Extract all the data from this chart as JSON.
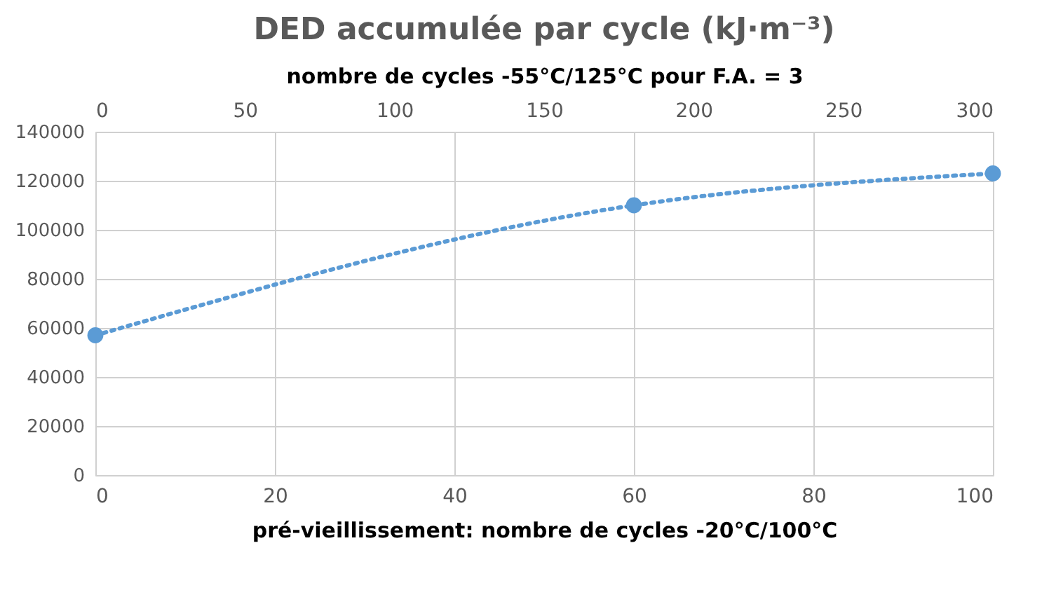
{
  "chart_data": {
    "type": "line",
    "title": "DED accumulée par cycle (kJ·m⁻³)",
    "xlabel": "pré-vieillissement: nombre de cycles -20°C/100°C",
    "x2label": "nombre de cycles -55°C/125°C pour F.A. = 3",
    "x": [
      0,
      60,
      100
    ],
    "series": [
      {
        "color": "#5b9bd5",
        "values": [
          57000,
          110000,
          123000
        ]
      }
    ],
    "xlim": [
      0,
      100
    ],
    "xticks": [
      0,
      20,
      40,
      60,
      80,
      100
    ],
    "x2lim": [
      0,
      300
    ],
    "x2ticks": [
      0,
      50,
      100,
      150,
      200,
      250,
      300
    ],
    "ylim": [
      0,
      140000
    ],
    "yticks": [
      0,
      20000,
      40000,
      60000,
      80000,
      100000,
      120000,
      140000
    ],
    "grid": true,
    "marker": "circle",
    "line_style": "dotted"
  }
}
